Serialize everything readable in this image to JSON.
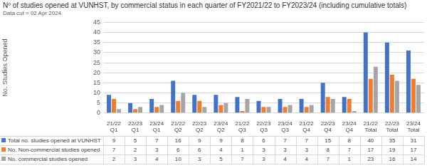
{
  "chart_data": {
    "type": "bar",
    "title": "Nº of studies opened at VUNHST, by commercial status in each quarter of FY2021/22 to FY2023/24 (including cumulative totals)",
    "subtitle": "Data cut = 02 Apr 2024",
    "y_label": "No. Studies Opened",
    "categories": [
      "21/22 Q1",
      "22/23 Q1",
      "23/24 Q1",
      "21/22 Q2",
      "22/23 Q2",
      "23/24 Q2",
      "21/22 Q3",
      "22/23 Q3",
      "23/24 Q3",
      "21/22 Q4",
      "22/23 Q4",
      "23/24 Q4",
      "21/22 Total",
      "22/23 Total",
      "23/24 Total"
    ],
    "series": [
      {
        "name": "Total no. studies opened at VUNHST",
        "color": "#4472c4",
        "values": [
          9,
          5,
          7,
          16,
          9,
          9,
          8,
          6,
          7,
          7,
          15,
          8,
          40,
          35,
          31
        ]
      },
      {
        "name": "No. Non-commercial studies opened",
        "color": "#ed7d31",
        "values": [
          7,
          2,
          3,
          6,
          6,
          4,
          1,
          3,
          3,
          3,
          8,
          7,
          17,
          19,
          17
        ]
      },
      {
        "name": "No. commercial studies opened",
        "color": "#a5a5a5",
        "values": [
          2,
          3,
          4,
          10,
          3,
          5,
          7,
          3,
          4,
          4,
          7,
          1,
          23,
          16,
          14
        ]
      }
    ],
    "ylim": [
      0,
      45
    ],
    "yticks": [
      0,
      5,
      10,
      15,
      20,
      25,
      30,
      35,
      40,
      45
    ],
    "grid": true,
    "legend": "bottom"
  }
}
